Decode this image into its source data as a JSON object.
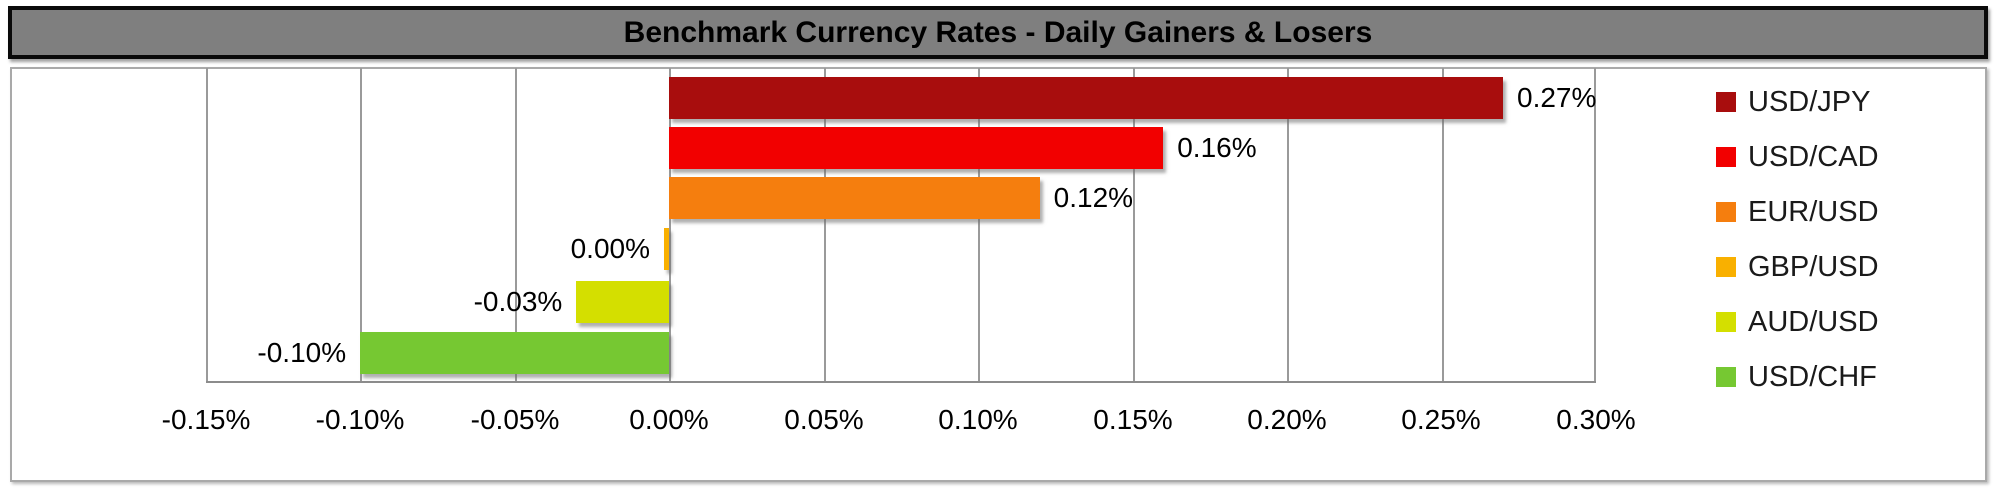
{
  "title": "Benchmark Currency Rates - Daily Gainers & Losers",
  "chart_data": {
    "type": "bar",
    "orientation": "horizontal",
    "title": "Benchmark Currency Rates - Daily Gainers & Losers",
    "xlabel": "",
    "ylabel": "",
    "xlim": [
      -0.15,
      0.3
    ],
    "x_tick_step": 0.05,
    "grid": "vertical",
    "legend_position": "right",
    "x_tick_labels": [
      "-0.15%",
      "-0.10%",
      "-0.05%",
      "0.00%",
      "0.05%",
      "0.10%",
      "0.15%",
      "0.20%",
      "0.25%",
      "0.30%"
    ],
    "series": [
      {
        "name": "USD/JPY",
        "value": 0.27,
        "label": "0.27%",
        "color": "#A80D0D"
      },
      {
        "name": "USD/CAD",
        "value": 0.16,
        "label": "0.16%",
        "color": "#F20000"
      },
      {
        "name": "EUR/USD",
        "value": 0.12,
        "label": "0.12%",
        "color": "#F57E0E"
      },
      {
        "name": "GBP/USD",
        "value": 0.0,
        "label": "0.00%",
        "color": "#F9B000"
      },
      {
        "name": "AUD/USD",
        "value": -0.03,
        "label": "-0.03%",
        "color": "#D4DF00"
      },
      {
        "name": "USD/CHF",
        "value": -0.1,
        "label": "-0.10%",
        "color": "#76C832"
      }
    ]
  }
}
